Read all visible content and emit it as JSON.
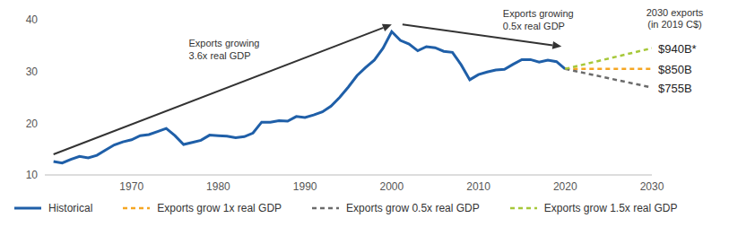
{
  "chart_data": {
    "type": "line",
    "header": [
      "2030 exports",
      "(in 2019 C$)"
    ],
    "trend_labels": [
      [
        "Exports growing",
        "3.6x real GDP"
      ],
      [
        "Exports growing",
        "0.5x real GDP"
      ]
    ],
    "x": [
      1961,
      1962,
      1963,
      1964,
      1965,
      1966,
      1967,
      1968,
      1969,
      1970,
      1971,
      1972,
      1973,
      1974,
      1975,
      1976,
      1977,
      1978,
      1979,
      1980,
      1981,
      1982,
      1983,
      1984,
      1985,
      1986,
      1987,
      1988,
      1989,
      1990,
      1991,
      1992,
      1993,
      1994,
      1995,
      1996,
      1997,
      1998,
      1999,
      2000,
      2001,
      2002,
      2003,
      2004,
      2005,
      2006,
      2007,
      2008,
      2009,
      2010,
      2011,
      2012,
      2013,
      2014,
      2015,
      2016,
      2017,
      2018,
      2019,
      2020,
      2030
    ],
    "series": [
      {
        "name": "Historical",
        "color": "#1f5fa8",
        "line_style": "solid",
        "values": [
          12.6,
          12.3,
          13.0,
          13.6,
          13.3,
          13.8,
          14.8,
          15.8,
          16.4,
          16.8,
          17.6,
          17.8,
          18.4,
          19.0,
          17.6,
          15.9,
          16.3,
          16.7,
          17.7,
          17.6,
          17.5,
          17.2,
          17.4,
          18.1,
          20.2,
          20.2,
          20.5,
          20.4,
          21.3,
          21.1,
          21.6,
          22.2,
          23.3,
          25.0,
          27.0,
          29.2,
          30.8,
          32.2,
          34.5,
          37.7,
          36.0,
          35.3,
          34.0,
          34.8,
          34.6,
          33.9,
          33.7,
          31.3,
          28.4,
          29.4,
          29.9,
          30.3,
          30.4,
          31.4,
          32.3,
          32.3,
          31.8,
          32.2,
          31.9,
          30.5,
          null
        ]
      },
      {
        "name": "Exports grow 1x real GDP",
        "color": "#f5a623",
        "line_style": "dashed",
        "end_label": "$850B",
        "values": [
          null,
          null,
          null,
          null,
          null,
          null,
          null,
          null,
          null,
          null,
          null,
          null,
          null,
          null,
          null,
          null,
          null,
          null,
          null,
          null,
          null,
          null,
          null,
          null,
          null,
          null,
          null,
          null,
          null,
          null,
          null,
          null,
          null,
          null,
          null,
          null,
          null,
          null,
          null,
          null,
          null,
          null,
          null,
          null,
          null,
          null,
          null,
          null,
          null,
          null,
          null,
          null,
          null,
          null,
          null,
          null,
          null,
          null,
          null,
          30.5,
          30.5
        ]
      },
      {
        "name": "Exports grow 0.5x real GDP",
        "color": "#6b6b6b",
        "line_style": "dashed",
        "end_label": "$755B",
        "values": [
          null,
          null,
          null,
          null,
          null,
          null,
          null,
          null,
          null,
          null,
          null,
          null,
          null,
          null,
          null,
          null,
          null,
          null,
          null,
          null,
          null,
          null,
          null,
          null,
          null,
          null,
          null,
          null,
          null,
          null,
          null,
          null,
          null,
          null,
          null,
          null,
          null,
          null,
          null,
          null,
          null,
          null,
          null,
          null,
          null,
          null,
          null,
          null,
          null,
          null,
          null,
          null,
          null,
          null,
          null,
          null,
          null,
          null,
          null,
          30.5,
          26.9
        ]
      },
      {
        "name": "Exports grow 1.5x real GDP",
        "color": "#a6c83a",
        "line_style": "dashed",
        "end_label": "$940B*",
        "values": [
          null,
          null,
          null,
          null,
          null,
          null,
          null,
          null,
          null,
          null,
          null,
          null,
          null,
          null,
          null,
          null,
          null,
          null,
          null,
          null,
          null,
          null,
          null,
          null,
          null,
          null,
          null,
          null,
          null,
          null,
          null,
          null,
          null,
          null,
          null,
          null,
          null,
          null,
          null,
          null,
          null,
          null,
          null,
          null,
          null,
          null,
          null,
          null,
          null,
          null,
          null,
          null,
          null,
          null,
          null,
          null,
          null,
          null,
          null,
          30.5,
          34.5
        ]
      }
    ],
    "xlim": [
      1960,
      2030
    ],
    "xticks": [
      1970,
      1980,
      1990,
      2000,
      2010,
      2020,
      2030
    ],
    "ylim": [
      10,
      40
    ],
    "yticks": [
      10,
      20,
      30,
      40
    ],
    "grid": false
  }
}
